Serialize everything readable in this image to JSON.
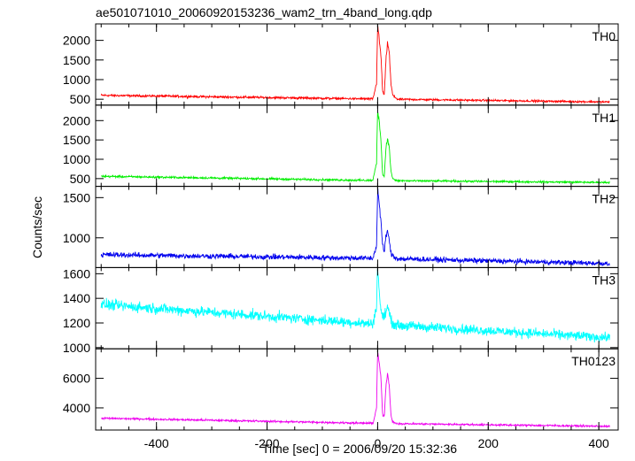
{
  "chart_data": {
    "type": "line",
    "title": "ae501071010_20060920153236_wam2_trn_4band_long.qdp",
    "xlabel": "Time [sec] 0 = 2006/09/20 15:32:36",
    "ylabel": "Counts/sec",
    "xlim": [
      -510,
      435
    ],
    "xticks": [
      -400,
      -200,
      0,
      200,
      400
    ],
    "grid": false,
    "panels": [
      {
        "name": "TH0",
        "color": "#ff0000",
        "ylim": [
          350,
          2420
        ],
        "yticks": [
          500,
          1000,
          1500,
          2000
        ],
        "baseline": {
          "x": [
            -500,
            0,
            420
          ],
          "y": [
            600,
            505,
            430
          ]
        },
        "burst": {
          "x": [
            -8,
            -2,
            0,
            3,
            6,
            9,
            12,
            15,
            18,
            21,
            24,
            27,
            30,
            35
          ],
          "y": [
            540,
            900,
            2400,
            2000,
            1600,
            700,
            600,
            1500,
            1950,
            1700,
            900,
            620,
            560,
            520
          ]
        }
      },
      {
        "name": "TH1",
        "color": "#00ee00",
        "ylim": [
          300,
          2400
        ],
        "yticks": [
          500,
          1000,
          1500,
          2000
        ],
        "baseline": {
          "x": [
            -500,
            0,
            420
          ],
          "y": [
            560,
            450,
            400
          ]
        },
        "burst": {
          "x": [
            -8,
            -2,
            0,
            3,
            6,
            9,
            12,
            15,
            18,
            21,
            24,
            27,
            30,
            35
          ],
          "y": [
            500,
            900,
            2300,
            1950,
            1500,
            600,
            550,
            1300,
            1550,
            1300,
            700,
            520,
            470,
            440
          ]
        }
      },
      {
        "name": "TH2",
        "color": "#0000ee",
        "ylim": [
          630,
          1640
        ],
        "yticks": [
          1000,
          1500
        ],
        "baseline": {
          "x": [
            -500,
            0,
            420
          ],
          "y": [
            790,
            745,
            680
          ]
        },
        "burst": {
          "x": [
            -8,
            -2,
            0,
            3,
            6,
            9,
            12,
            15,
            18,
            21,
            24,
            27,
            30,
            35
          ],
          "y": [
            760,
            900,
            1600,
            1420,
            1200,
            900,
            820,
            1020,
            1100,
            950,
            820,
            780,
            760,
            750
          ]
        }
      },
      {
        "name": "TH3",
        "color": "#00ffff",
        "ylim": [
          990,
          1650
        ],
        "yticks": [
          1000,
          1200,
          1400,
          1600
        ],
        "baseline": {
          "x": [
            -500,
            0,
            420
          ],
          "y": [
            1350,
            1190,
            1080
          ]
        },
        "burst": {
          "x": [
            -8,
            -2,
            0,
            3,
            6,
            9,
            12,
            15,
            18,
            21,
            24,
            27,
            30,
            35
          ],
          "y": [
            1200,
            1350,
            1650,
            1450,
            1300,
            1250,
            1250,
            1300,
            1330,
            1280,
            1220,
            1200,
            1190,
            1190
          ]
        }
      },
      {
        "name": "TH0123",
        "color": "#ee00ee",
        "ylim": [
          2500,
          8000
        ],
        "yticks": [
          4000,
          6000
        ],
        "baseline": {
          "x": [
            -500,
            0,
            420
          ],
          "y": [
            3300,
            2950,
            2750
          ]
        },
        "burst": {
          "x": [
            -8,
            -2,
            0,
            3,
            6,
            9,
            12,
            15,
            18,
            21,
            24,
            27,
            30,
            35
          ],
          "y": [
            3000,
            4000,
            7900,
            7000,
            6000,
            3500,
            3400,
            5500,
            6300,
            5500,
            3500,
            3100,
            3000,
            2950
          ]
        }
      }
    ]
  }
}
